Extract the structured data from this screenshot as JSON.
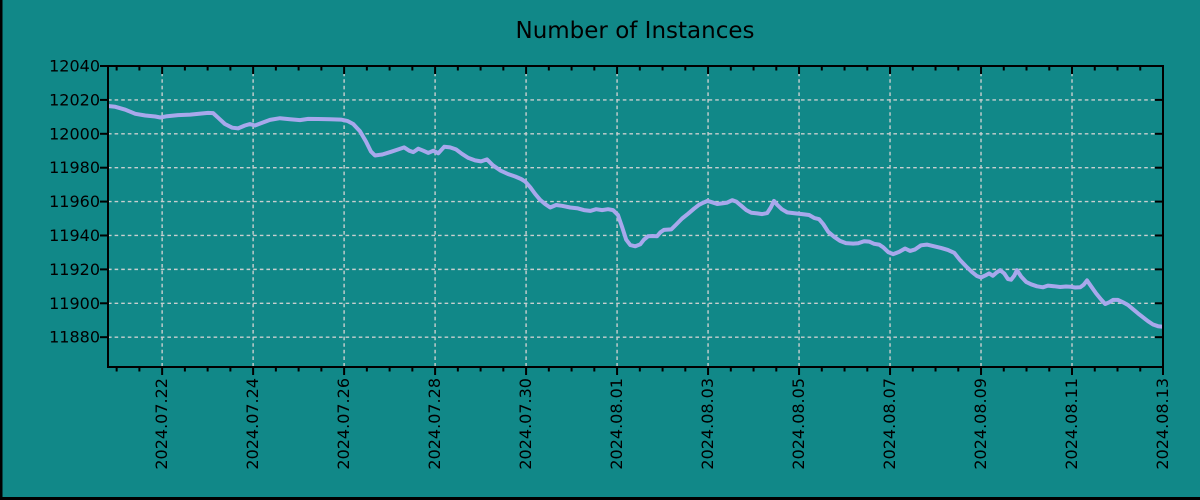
{
  "colors": {
    "background": "#118888",
    "line": "#a8a8ec",
    "grid": "#c9cfcf",
    "axis": "#000000",
    "text": "#000000",
    "frame_edge": "#000000"
  },
  "chart_data": {
    "type": "line",
    "title": "Number of Instances",
    "grid": true,
    "legend": "none",
    "x_axis": {
      "tick_labels": [
        "2024.07.22",
        "2024.07.24",
        "2024.07.26",
        "2024.07.28",
        "2024.07.30",
        "2024.08.01",
        "2024.08.03",
        "2024.08.05",
        "2024.08.07",
        "2024.08.09",
        "2024.08.11",
        "2024.08.13"
      ],
      "tick_positions_days": [
        0,
        2,
        4,
        6,
        8,
        10,
        12,
        14,
        16,
        18,
        20,
        22
      ],
      "minor_tick_interval_days": 0.5,
      "xlim_days": [
        -1.19,
        22
      ]
    },
    "y_axis": {
      "ticks": [
        11880,
        11900,
        11920,
        11940,
        11960,
        11980,
        12000,
        12020,
        12040
      ],
      "ylim": [
        11862.4,
        12040
      ]
    },
    "series": [
      {
        "name": "Number of Instances",
        "color": "#a8a8ec",
        "points": [
          [
            -1.19,
            12016.4
          ],
          [
            -1.03,
            12015.9
          ],
          [
            -0.81,
            12014.2
          ],
          [
            -0.59,
            12011.8
          ],
          [
            -0.37,
            12010.8
          ],
          [
            -0.15,
            12010.2
          ],
          [
            -0.04,
            12009.6
          ],
          [
            0.11,
            12010.4
          ],
          [
            0.35,
            12011.0
          ],
          [
            0.62,
            12011.3
          ],
          [
            0.84,
            12011.9
          ],
          [
            1.01,
            12012.3
          ],
          [
            1.12,
            12012.2
          ],
          [
            1.23,
            12009.5
          ],
          [
            1.38,
            12005.8
          ],
          [
            1.54,
            12003.6
          ],
          [
            1.67,
            12003.2
          ],
          [
            1.82,
            12004.9
          ],
          [
            1.93,
            12005.7
          ],
          [
            2.04,
            12004.9
          ],
          [
            2.2,
            12006.5
          ],
          [
            2.37,
            12008.2
          ],
          [
            2.59,
            12009.2
          ],
          [
            2.81,
            12008.6
          ],
          [
            3.03,
            12008.1
          ],
          [
            3.21,
            12008.8
          ],
          [
            3.43,
            12008.7
          ],
          [
            3.69,
            12008.6
          ],
          [
            3.93,
            12008.4
          ],
          [
            4.07,
            12007.6
          ],
          [
            4.2,
            12005.8
          ],
          [
            4.35,
            12001.5
          ],
          [
            4.48,
            11995.5
          ],
          [
            4.59,
            11989.5
          ],
          [
            4.68,
            11987.2
          ],
          [
            4.84,
            11987.8
          ],
          [
            5.03,
            11989.4
          ],
          [
            5.19,
            11990.8
          ],
          [
            5.32,
            11992.0
          ],
          [
            5.43,
            11990.0
          ],
          [
            5.52,
            11989.2
          ],
          [
            5.63,
            11991.2
          ],
          [
            5.74,
            11990.0
          ],
          [
            5.85,
            11988.7
          ],
          [
            5.96,
            11990.0
          ],
          [
            6.07,
            11988.5
          ],
          [
            6.2,
            11992.3
          ],
          [
            6.33,
            11992.0
          ],
          [
            6.46,
            11990.8
          ],
          [
            6.59,
            11988.2
          ],
          [
            6.73,
            11985.8
          ],
          [
            6.88,
            11984.3
          ],
          [
            7.01,
            11983.7
          ],
          [
            7.14,
            11984.9
          ],
          [
            7.27,
            11981.4
          ],
          [
            7.43,
            11978.4
          ],
          [
            7.6,
            11976.3
          ],
          [
            7.76,
            11974.8
          ],
          [
            7.89,
            11973.3
          ],
          [
            7.98,
            11971.8
          ],
          [
            8.09,
            11968.5
          ],
          [
            8.2,
            11964.5
          ],
          [
            8.31,
            11961.0
          ],
          [
            8.42,
            11958.5
          ],
          [
            8.53,
            11956.5
          ],
          [
            8.66,
            11958.0
          ],
          [
            8.79,
            11957.5
          ],
          [
            8.97,
            11956.5
          ],
          [
            9.14,
            11956.0
          ],
          [
            9.27,
            11955.0
          ],
          [
            9.41,
            11954.5
          ],
          [
            9.54,
            11955.5
          ],
          [
            9.67,
            11955.0
          ],
          [
            9.8,
            11955.5
          ],
          [
            9.91,
            11955.0
          ],
          [
            10.02,
            11952.0
          ],
          [
            10.11,
            11945.0
          ],
          [
            10.2,
            11937.5
          ],
          [
            10.29,
            11934.3
          ],
          [
            10.4,
            11933.6
          ],
          [
            10.51,
            11934.8
          ],
          [
            10.59,
            11937.5
          ],
          [
            10.68,
            11939.5
          ],
          [
            10.78,
            11939.7
          ],
          [
            10.88,
            11939.6
          ],
          [
            10.95,
            11941.8
          ],
          [
            11.03,
            11943.3
          ],
          [
            11.19,
            11943.6
          ],
          [
            11.3,
            11946.5
          ],
          [
            11.43,
            11950.0
          ],
          [
            11.56,
            11952.8
          ],
          [
            11.69,
            11955.8
          ],
          [
            11.8,
            11958.1
          ],
          [
            11.9,
            11959.4
          ],
          [
            11.99,
            11960.4
          ],
          [
            12.09,
            11959.6
          ],
          [
            12.2,
            11958.6
          ],
          [
            12.31,
            11958.9
          ],
          [
            12.42,
            11959.4
          ],
          [
            12.53,
            11960.8
          ],
          [
            12.62,
            11960.0
          ],
          [
            12.73,
            11957.5
          ],
          [
            12.84,
            11955.0
          ],
          [
            12.95,
            11953.4
          ],
          [
            13.08,
            11953.0
          ],
          [
            13.19,
            11952.6
          ],
          [
            13.3,
            11953.2
          ],
          [
            13.38,
            11956.5
          ],
          [
            13.45,
            11960.4
          ],
          [
            13.52,
            11958.1
          ],
          [
            13.62,
            11955.5
          ],
          [
            13.74,
            11953.6
          ],
          [
            13.92,
            11953.0
          ],
          [
            14.07,
            11952.6
          ],
          [
            14.22,
            11952.1
          ],
          [
            14.33,
            11950.4
          ],
          [
            14.44,
            11949.6
          ],
          [
            14.53,
            11946.8
          ],
          [
            14.64,
            11942.2
          ],
          [
            14.77,
            11939.2
          ],
          [
            14.9,
            11936.8
          ],
          [
            15.03,
            11935.5
          ],
          [
            15.19,
            11935.2
          ],
          [
            15.3,
            11935.4
          ],
          [
            15.43,
            11936.6
          ],
          [
            15.54,
            11936.4
          ],
          [
            15.65,
            11935.1
          ],
          [
            15.76,
            11934.6
          ],
          [
            15.85,
            11933.0
          ],
          [
            15.96,
            11930.2
          ],
          [
            16.07,
            11929.0
          ],
          [
            16.2,
            11930.3
          ],
          [
            16.33,
            11932.3
          ],
          [
            16.44,
            11930.9
          ],
          [
            16.55,
            11931.8
          ],
          [
            16.68,
            11934.2
          ],
          [
            16.81,
            11934.6
          ],
          [
            16.97,
            11933.6
          ],
          [
            17.12,
            11932.7
          ],
          [
            17.27,
            11931.5
          ],
          [
            17.41,
            11929.8
          ],
          [
            17.54,
            11925.5
          ],
          [
            17.67,
            11921.8
          ],
          [
            17.8,
            11918.5
          ],
          [
            17.91,
            11916.1
          ],
          [
            18.0,
            11915.2
          ],
          [
            18.09,
            11916.3
          ],
          [
            18.18,
            11917.6
          ],
          [
            18.26,
            11916.2
          ],
          [
            18.35,
            11918.3
          ],
          [
            18.42,
            11919.5
          ],
          [
            18.51,
            11917.6
          ],
          [
            18.59,
            11914.3
          ],
          [
            18.66,
            11913.9
          ],
          [
            18.73,
            11916.2
          ],
          [
            18.79,
            11919.5
          ],
          [
            18.88,
            11915.8
          ],
          [
            18.99,
            11912.6
          ],
          [
            19.1,
            11911.2
          ],
          [
            19.23,
            11910.0
          ],
          [
            19.36,
            11909.4
          ],
          [
            19.47,
            11910.4
          ],
          [
            19.6,
            11910.1
          ],
          [
            19.74,
            11909.6
          ],
          [
            19.87,
            11909.9
          ],
          [
            19.96,
            11909.8
          ],
          [
            20.07,
            11909.3
          ],
          [
            20.18,
            11909.4
          ],
          [
            20.26,
            11911.0
          ],
          [
            20.33,
            11913.5
          ],
          [
            20.42,
            11910.0
          ],
          [
            20.53,
            11905.8
          ],
          [
            20.64,
            11902.2
          ],
          [
            20.73,
            11899.6
          ],
          [
            20.81,
            11900.5
          ],
          [
            20.9,
            11902.0
          ],
          [
            21.01,
            11902.0
          ],
          [
            21.12,
            11900.6
          ],
          [
            21.23,
            11899.0
          ],
          [
            21.34,
            11896.5
          ],
          [
            21.45,
            11894.0
          ],
          [
            21.56,
            11891.7
          ],
          [
            21.67,
            11889.4
          ],
          [
            21.78,
            11887.5
          ],
          [
            21.89,
            11886.5
          ],
          [
            22.0,
            11886.2
          ]
        ]
      }
    ]
  }
}
